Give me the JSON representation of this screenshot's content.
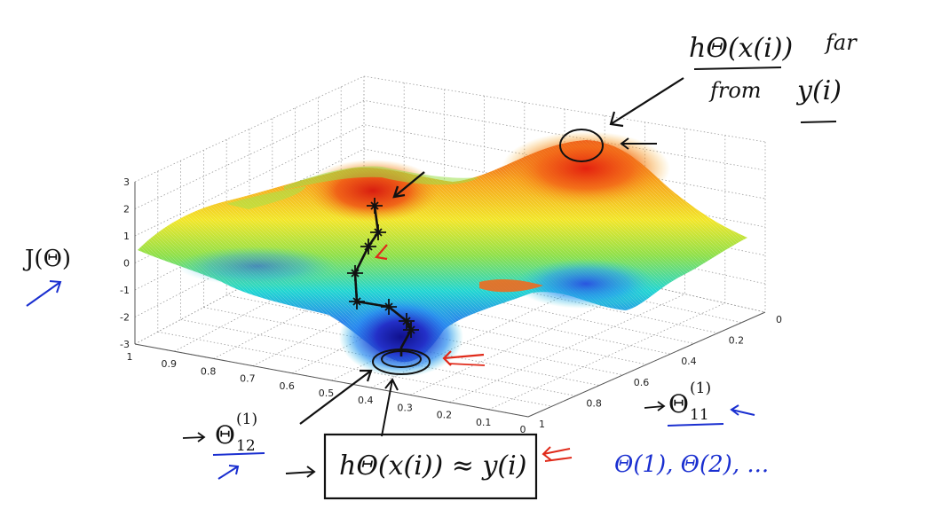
{
  "axes": {
    "z_label": "J(Θ)",
    "z_ticks": [
      "3",
      "2",
      "1",
      "0",
      "-1",
      "-2",
      "-3"
    ],
    "left_ticks": [
      "1",
      "0.9",
      "0.8",
      "0.7",
      "0.6",
      "0.5",
      "0.4",
      "0.3",
      "0.2",
      "0.1",
      "0"
    ],
    "right_ticks": [
      "0",
      "0.2",
      "0.4",
      "0.6",
      "0.8",
      "1"
    ],
    "theta11": {
      "base": "Θ",
      "sup": "(1)",
      "sub": "11"
    },
    "theta12": {
      "base": "Θ",
      "sup": "(1)",
      "sub": "12"
    }
  },
  "annotations": {
    "top_note": {
      "numerator": "hΘ(x(i))",
      "right": "far",
      "denominator": "from",
      "target": "y(i)"
    },
    "bottom_box": "hΘ(x(i)) ≈ y(i)",
    "param_list": "Θ(1), Θ(2), ..."
  },
  "colors": {
    "ink": "#111111",
    "blue_ink": "#1a2fd0",
    "red_ink": "#e02a1a"
  }
}
